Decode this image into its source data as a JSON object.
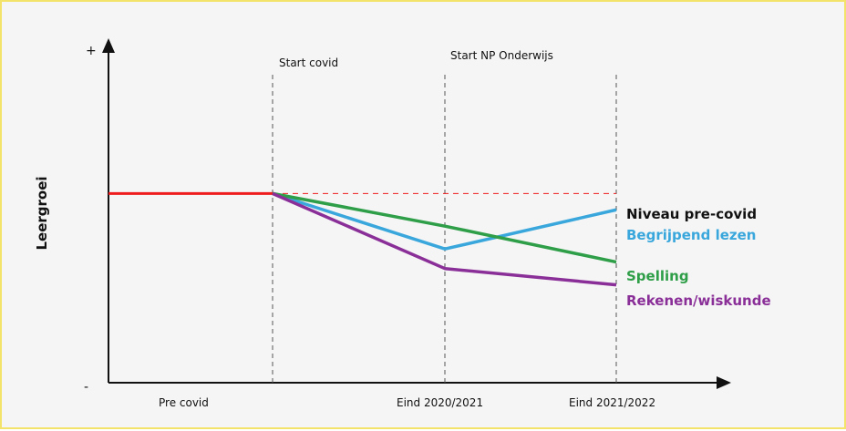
{
  "chart_data": {
    "type": "line",
    "ylabel": "Leergroei",
    "y_axis_markers": {
      "top": "+",
      "bottom": "-"
    },
    "x_tick_labels": [
      "Pre covid",
      "Eind 2020/2021",
      "Eind 2021/2022"
    ],
    "annotations": [
      "Start covid",
      "Start NP Onderwijs"
    ],
    "categories": [
      "Pre covid start",
      "Start covid",
      "Eind 2020/2021",
      "Eind 2021/2022"
    ],
    "ylim": [
      0,
      100
    ],
    "series": [
      {
        "name": "Niveau pre-covid",
        "color": "#111111",
        "line_color": "#ee1c1c",
        "values": [
          58,
          58,
          58,
          58
        ]
      },
      {
        "name": "Begrijpend lezen",
        "color": "#3aa7dc",
        "values": [
          null,
          58,
          41,
          53
        ]
      },
      {
        "name": "Spelling",
        "color": "#2e9e48",
        "values": [
          null,
          58,
          48,
          37
        ]
      },
      {
        "name": "Rekenen/wiskunde",
        "color": "#8a2f98",
        "values": [
          null,
          58,
          35,
          30
        ]
      }
    ]
  }
}
